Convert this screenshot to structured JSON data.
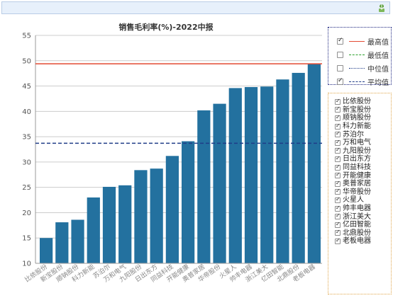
{
  "title": "销售毛利率(%)-2022中报",
  "legend": {
    "items": [
      {
        "label": "最高值",
        "checked": true,
        "color": "#e34a33",
        "style": "solid"
      },
      {
        "label": "最低值",
        "checked": false,
        "color": "#2ca02c",
        "style": "dashdot"
      },
      {
        "label": "中位值",
        "checked": false,
        "color": "#1f3c88",
        "style": "dotted"
      },
      {
        "label": "平均值",
        "checked": true,
        "color": "#1f3c88",
        "style": "dashed"
      }
    ]
  },
  "series_panel": {
    "items": [
      {
        "label": "比依股份",
        "checked": true
      },
      {
        "label": "新宝股份",
        "checked": true
      },
      {
        "label": "顺钠股份",
        "checked": true
      },
      {
        "label": "科力新能",
        "checked": true
      },
      {
        "label": "苏泊尔",
        "checked": true
      },
      {
        "label": "万和电气",
        "checked": true
      },
      {
        "label": "九阳股份",
        "checked": true
      },
      {
        "label": "日出东方",
        "checked": true
      },
      {
        "label": "同益科技",
        "checked": true
      },
      {
        "label": "开能健康",
        "checked": true
      },
      {
        "label": "奥普家居",
        "checked": true
      },
      {
        "label": "华帝股份",
        "checked": true
      },
      {
        "label": "火星人",
        "checked": true
      },
      {
        "label": "帅丰电器",
        "checked": true
      },
      {
        "label": "浙江美大",
        "checked": true
      },
      {
        "label": "亿田智能",
        "checked": true
      },
      {
        "label": "北鼎股份",
        "checked": true
      },
      {
        "label": "老板电器",
        "checked": true
      }
    ]
  },
  "chart_data": {
    "type": "bar",
    "title": "销售毛利率(%)-2022中报",
    "categories": [
      "比依股份",
      "新宝股份",
      "顺钠股份",
      "科力新能",
      "苏泊尔",
      "万和电气",
      "九阳股份",
      "日出东方",
      "同益科技",
      "开能健康",
      "奥普家居",
      "华帝股份",
      "火星人",
      "帅丰电器",
      "浙江美大",
      "亿田智能",
      "北鼎股份",
      "老板电器"
    ],
    "values": [
      15.0,
      18.1,
      18.6,
      23.0,
      25.1,
      25.4,
      28.4,
      28.7,
      31.2,
      34.1,
      40.2,
      41.5,
      44.6,
      44.8,
      44.9,
      46.3,
      47.6,
      49.4
    ],
    "ylim": [
      10,
      55
    ],
    "yticks": [
      10,
      15,
      20,
      25,
      30,
      35,
      40,
      45,
      50,
      55
    ],
    "grid": true,
    "reference_lines": {
      "max": 49.4,
      "mean": 33.7
    },
    "bar_color": "#23719f",
    "gridline_color": "#cccccc"
  }
}
